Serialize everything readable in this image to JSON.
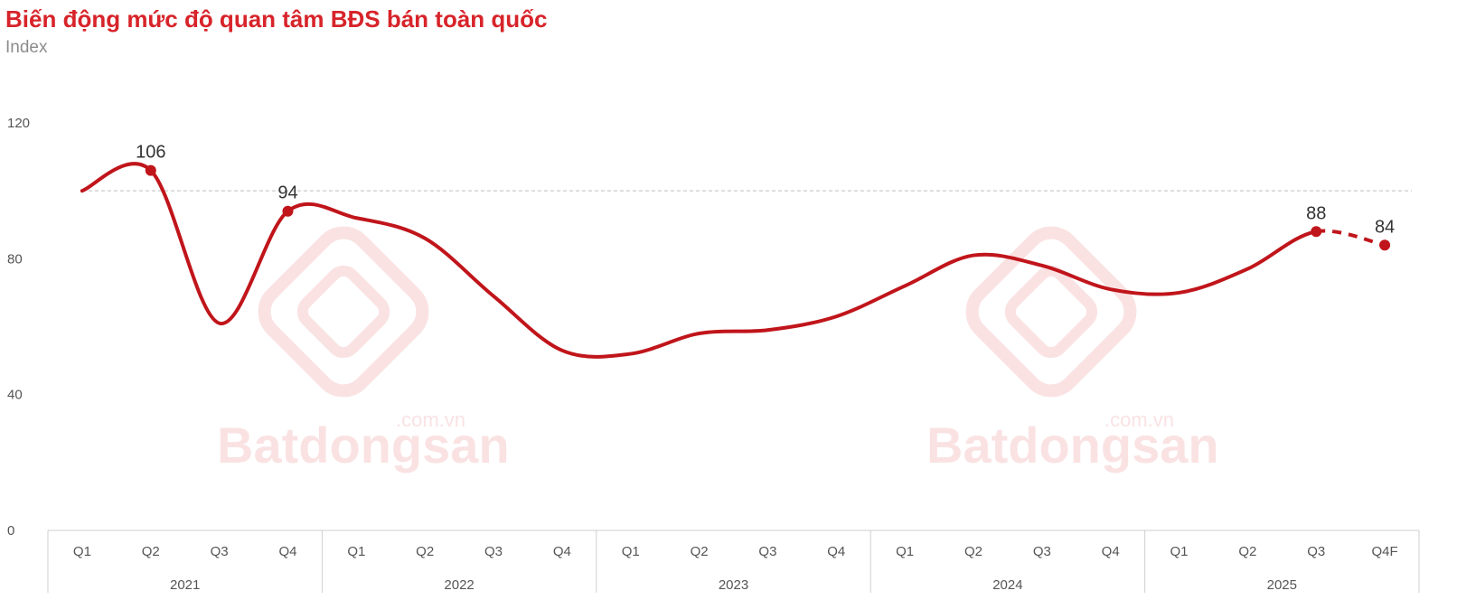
{
  "chart_data": {
    "type": "line",
    "title": "Biến động mức độ quan tâm BĐS bán toàn quốc",
    "ylabel": "Index",
    "ylim": [
      0,
      120
    ],
    "yticks": [
      0,
      40,
      80,
      120
    ],
    "reference_line": 100,
    "categories": [
      "Q1",
      "Q2",
      "Q3",
      "Q4",
      "Q1",
      "Q2",
      "Q3",
      "Q4",
      "Q1",
      "Q2",
      "Q3",
      "Q4",
      "Q1",
      "Q2",
      "Q3",
      "Q4",
      "Q1",
      "Q2",
      "Q3",
      "Q4F"
    ],
    "year_groups": [
      {
        "label": "2021",
        "count": 4
      },
      {
        "label": "2022",
        "count": 4
      },
      {
        "label": "2023",
        "count": 4
      },
      {
        "label": "2024",
        "count": 4
      },
      {
        "label": "2025",
        "count": 4
      }
    ],
    "values": [
      100,
      106,
      61,
      94,
      92,
      86,
      69,
      53,
      52,
      58,
      59,
      63,
      72,
      81,
      78,
      71,
      70,
      77,
      88,
      84
    ],
    "forecast_from_index": 18,
    "data_labels": [
      {
        "index": 1,
        "text": "106"
      },
      {
        "index": 3,
        "text": "94"
      },
      {
        "index": 18,
        "text": "88"
      },
      {
        "index": 19,
        "text": "84"
      }
    ],
    "line_color": "#c0151b",
    "grid": false,
    "legend": "none"
  },
  "watermark": {
    "brand": "Batdongsan",
    "domain": ".com.vn"
  }
}
